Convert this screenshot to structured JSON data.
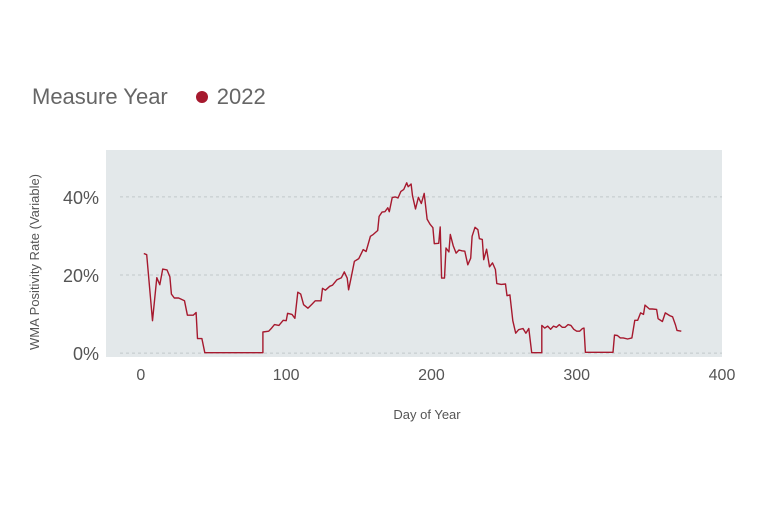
{
  "legend": {
    "title": "Measure Year",
    "items": [
      {
        "label": "2022",
        "color": "#a6192e"
      }
    ]
  },
  "colors": {
    "plot_background": "#e3e8ea",
    "gridline": "#c2c7ca",
    "line": "#a6192e",
    "text": "#555555"
  },
  "chart_data": {
    "type": "line",
    "xlabel": "Day of  Year",
    "ylabel": "WMA Positivity Rate (Variable)",
    "xlim": [
      -24,
      400
    ],
    "ylim": [
      -1,
      52
    ],
    "x_ticks": [
      0,
      100,
      200,
      300,
      400
    ],
    "x_tick_labels": [
      "0",
      "100",
      "200",
      "300",
      "400"
    ],
    "y_ticks": [
      0,
      20,
      40
    ],
    "y_tick_labels": [
      "0%",
      "20%",
      "40%"
    ],
    "grid": "horizontal dashed",
    "legend_position": "top-left",
    "series": [
      {
        "name": "2022",
        "points": [
          [
            2,
            25.5
          ],
          [
            4,
            25.2
          ],
          [
            8,
            8.3
          ],
          [
            11,
            19.3
          ],
          [
            13,
            17.5
          ],
          [
            15,
            21.5
          ],
          [
            18,
            21.3
          ],
          [
            20,
            19.5
          ],
          [
            21,
            15.1
          ],
          [
            23,
            14.1
          ],
          [
            26,
            14.1
          ],
          [
            30,
            13.4
          ],
          [
            32,
            9.7
          ],
          [
            36,
            9.7
          ],
          [
            38,
            10.4
          ],
          [
            39,
            3.7
          ],
          [
            42,
            3.7
          ],
          [
            44,
            0.1
          ],
          [
            48,
            0.1
          ],
          [
            60,
            0.1
          ],
          [
            72,
            0.1
          ],
          [
            84,
            0.1
          ],
          [
            84,
            5.4
          ],
          [
            88,
            5.6
          ],
          [
            90,
            6.4
          ],
          [
            92,
            7.3
          ],
          [
            95,
            7.1
          ],
          [
            98,
            8.4
          ],
          [
            100,
            8.3
          ],
          [
            101,
            10.2
          ],
          [
            104,
            9.9
          ],
          [
            106,
            8.9
          ],
          [
            108,
            15.6
          ],
          [
            110,
            15.1
          ],
          [
            112,
            12.4
          ],
          [
            115,
            11.5
          ],
          [
            118,
            12.6
          ],
          [
            120,
            13.4
          ],
          [
            124,
            13.4
          ],
          [
            125,
            16.6
          ],
          [
            127,
            16.1
          ],
          [
            130,
            17.1
          ],
          [
            132,
            17.4
          ],
          [
            135,
            18.8
          ],
          [
            138,
            19.3
          ],
          [
            140,
            20.8
          ],
          [
            142,
            19.2
          ],
          [
            143,
            16.2
          ],
          [
            145,
            19.8
          ],
          [
            147,
            23.5
          ],
          [
            150,
            24.2
          ],
          [
            153,
            26.5
          ],
          [
            155,
            26.0
          ],
          [
            158,
            29.9
          ],
          [
            160,
            30.4
          ],
          [
            163,
            31.4
          ],
          [
            164,
            35.0
          ],
          [
            166,
            36.1
          ],
          [
            168,
            36.2
          ],
          [
            170,
            37.2
          ],
          [
            171,
            36.2
          ],
          [
            173,
            39.8
          ],
          [
            175,
            40.0
          ],
          [
            177,
            39.7
          ],
          [
            179,
            41.4
          ],
          [
            181,
            41.9
          ],
          [
            183,
            43.6
          ],
          [
            184,
            42.6
          ],
          [
            186,
            43.3
          ],
          [
            187,
            40.3
          ],
          [
            189,
            36.9
          ],
          [
            191,
            39.9
          ],
          [
            193,
            38.3
          ],
          [
            195,
            40.9
          ],
          [
            197,
            34.3
          ],
          [
            199,
            33.0
          ],
          [
            201,
            32.1
          ],
          [
            202,
            28.0
          ],
          [
            205,
            28.1
          ],
          [
            206,
            32.3
          ],
          [
            207,
            19.2
          ],
          [
            209,
            19.2
          ],
          [
            210,
            26.9
          ],
          [
            212,
            25.9
          ],
          [
            213,
            30.4
          ],
          [
            215,
            27.5
          ],
          [
            217,
            25.6
          ],
          [
            219,
            26.4
          ],
          [
            221,
            26.2
          ],
          [
            223,
            26.1
          ],
          [
            225,
            22.6
          ],
          [
            227,
            24.3
          ],
          [
            228,
            29.9
          ],
          [
            230,
            32.2
          ],
          [
            232,
            31.6
          ],
          [
            233,
            29.3
          ],
          [
            235,
            29.1
          ],
          [
            236,
            23.9
          ],
          [
            238,
            26.6
          ],
          [
            240,
            22.1
          ],
          [
            242,
            23.1
          ],
          [
            244,
            21.4
          ],
          [
            245,
            17.8
          ],
          [
            248,
            17.6
          ],
          [
            251,
            17.7
          ],
          [
            252,
            14.7
          ],
          [
            254,
            14.9
          ],
          [
            256,
            8.3
          ],
          [
            258,
            5.1
          ],
          [
            260,
            6.0
          ],
          [
            263,
            6.3
          ],
          [
            265,
            5.1
          ],
          [
            267,
            6.3
          ],
          [
            269,
            0.1
          ],
          [
            274,
            0.1
          ],
          [
            276,
            0.1
          ],
          [
            276,
            7.1
          ],
          [
            278,
            6.4
          ],
          [
            280,
            6.9
          ],
          [
            282,
            6.1
          ],
          [
            284,
            6.9
          ],
          [
            286,
            6.6
          ],
          [
            288,
            7.3
          ],
          [
            290,
            6.6
          ],
          [
            292,
            6.6
          ],
          [
            294,
            7.3
          ],
          [
            296,
            7.1
          ],
          [
            298,
            6.1
          ],
          [
            300,
            5.6
          ],
          [
            302,
            5.6
          ],
          [
            304,
            6.3
          ],
          [
            305,
            6.4
          ],
          [
            306,
            0.2
          ],
          [
            312,
            0.2
          ],
          [
            320,
            0.2
          ],
          [
            325,
            0.2
          ],
          [
            326,
            4.6
          ],
          [
            328,
            4.5
          ],
          [
            330,
            3.9
          ],
          [
            332,
            3.9
          ],
          [
            335,
            3.6
          ],
          [
            338,
            3.9
          ],
          [
            340,
            8.4
          ],
          [
            342,
            8.4
          ],
          [
            344,
            10.3
          ],
          [
            346,
            9.9
          ],
          [
            347,
            12.3
          ],
          [
            350,
            11.3
          ],
          [
            352,
            11.3
          ],
          [
            355,
            11.2
          ],
          [
            356,
            8.8
          ],
          [
            359,
            8.1
          ],
          [
            361,
            10.3
          ],
          [
            364,
            9.6
          ],
          [
            366,
            9.3
          ],
          [
            368,
            7.2
          ],
          [
            369,
            5.8
          ],
          [
            372,
            5.6
          ]
        ]
      }
    ]
  }
}
